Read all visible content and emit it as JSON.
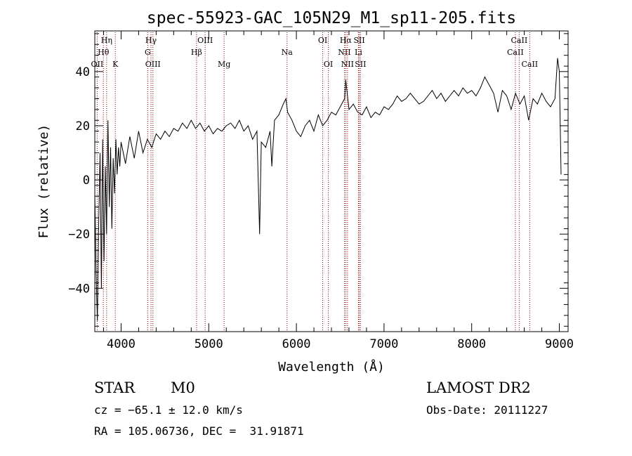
{
  "chart_data": {
    "type": "line",
    "title": "spec-55923-GAC_105N29_M1_sp11-205.fits",
    "xlabel": "Wavelength (Å)",
    "ylabel": "Flux (relative)",
    "xlim": [
      3700,
      9100
    ],
    "ylim": [
      -56,
      55
    ],
    "xticks": [
      4000,
      5000,
      6000,
      7000,
      8000,
      9000
    ],
    "yticks": [
      -40,
      -20,
      0,
      20,
      40
    ],
    "xtick_labels": [
      "4000",
      "5000",
      "6000",
      "7000",
      "8000",
      "9000"
    ],
    "ytick_labels": [
      "−40",
      "−20",
      "0",
      "20",
      "40"
    ],
    "grid": false,
    "line_color": "#000000",
    "marker_color": "#8b0000",
    "series": [
      {
        "values": [
          [
            3700,
            -5
          ],
          [
            3715,
            -35
          ],
          [
            3730,
            -52
          ],
          [
            3745,
            -15
          ],
          [
            3760,
            10
          ],
          [
            3775,
            -40
          ],
          [
            3790,
            15
          ],
          [
            3805,
            -30
          ],
          [
            3820,
            5
          ],
          [
            3835,
            -20
          ],
          [
            3850,
            22
          ],
          [
            3865,
            -10
          ],
          [
            3880,
            12
          ],
          [
            3895,
            -18
          ],
          [
            3910,
            8
          ],
          [
            3925,
            -5
          ],
          [
            3940,
            15
          ],
          [
            3955,
            2
          ],
          [
            3970,
            12
          ],
          [
            3985,
            5
          ],
          [
            4000,
            14
          ],
          [
            4050,
            6
          ],
          [
            4100,
            16
          ],
          [
            4150,
            8
          ],
          [
            4200,
            18
          ],
          [
            4250,
            10
          ],
          [
            4300,
            15
          ],
          [
            4350,
            12
          ],
          [
            4400,
            17
          ],
          [
            4450,
            15
          ],
          [
            4500,
            18
          ],
          [
            4550,
            16
          ],
          [
            4600,
            19
          ],
          [
            4650,
            18
          ],
          [
            4700,
            21
          ],
          [
            4750,
            19
          ],
          [
            4800,
            22
          ],
          [
            4850,
            19
          ],
          [
            4900,
            21
          ],
          [
            4950,
            18
          ],
          [
            5000,
            20
          ],
          [
            5050,
            17
          ],
          [
            5100,
            19
          ],
          [
            5150,
            18
          ],
          [
            5200,
            20
          ],
          [
            5250,
            21
          ],
          [
            5300,
            19
          ],
          [
            5350,
            22
          ],
          [
            5400,
            18
          ],
          [
            5450,
            20
          ],
          [
            5500,
            15
          ],
          [
            5550,
            18
          ],
          [
            5580,
            -20
          ],
          [
            5600,
            14
          ],
          [
            5650,
            12
          ],
          [
            5700,
            18
          ],
          [
            5720,
            5
          ],
          [
            5750,
            22
          ],
          [
            5800,
            24
          ],
          [
            5850,
            28
          ],
          [
            5880,
            30
          ],
          [
            5900,
            25
          ],
          [
            5950,
            22
          ],
          [
            6000,
            18
          ],
          [
            6050,
            16
          ],
          [
            6100,
            20
          ],
          [
            6150,
            22
          ],
          [
            6200,
            18
          ],
          [
            6250,
            24
          ],
          [
            6300,
            20
          ],
          [
            6350,
            22
          ],
          [
            6400,
            25
          ],
          [
            6450,
            24
          ],
          [
            6500,
            27
          ],
          [
            6550,
            30
          ],
          [
            6563,
            37
          ],
          [
            6600,
            26
          ],
          [
            6650,
            28
          ],
          [
            6700,
            25
          ],
          [
            6750,
            24
          ],
          [
            6800,
            27
          ],
          [
            6850,
            23
          ],
          [
            6900,
            25
          ],
          [
            6950,
            24
          ],
          [
            7000,
            27
          ],
          [
            7050,
            26
          ],
          [
            7100,
            28
          ],
          [
            7150,
            31
          ],
          [
            7200,
            29
          ],
          [
            7250,
            30
          ],
          [
            7300,
            32
          ],
          [
            7350,
            30
          ],
          [
            7400,
            28
          ],
          [
            7450,
            29
          ],
          [
            7500,
            31
          ],
          [
            7550,
            33
          ],
          [
            7600,
            30
          ],
          [
            7650,
            32
          ],
          [
            7700,
            29
          ],
          [
            7750,
            31
          ],
          [
            7800,
            33
          ],
          [
            7850,
            31
          ],
          [
            7900,
            34
          ],
          [
            7950,
            32
          ],
          [
            8000,
            33
          ],
          [
            8050,
            31
          ],
          [
            8100,
            34
          ],
          [
            8150,
            38
          ],
          [
            8200,
            35
          ],
          [
            8250,
            32
          ],
          [
            8300,
            25
          ],
          [
            8350,
            33
          ],
          [
            8400,
            31
          ],
          [
            8450,
            26
          ],
          [
            8500,
            32
          ],
          [
            8550,
            28
          ],
          [
            8600,
            31
          ],
          [
            8650,
            22
          ],
          [
            8700,
            30
          ],
          [
            8750,
            28
          ],
          [
            8800,
            32
          ],
          [
            8850,
            29
          ],
          [
            8900,
            27
          ],
          [
            8950,
            30
          ],
          [
            8980,
            45
          ],
          [
            9000,
            40
          ],
          [
            9020,
            2
          ]
        ]
      }
    ],
    "line_markers": [
      {
        "x": 3727,
        "label": "OII",
        "row": 3
      },
      {
        "x": 3798,
        "label": "Hθ",
        "row": 2
      },
      {
        "x": 3835,
        "label": "Hη",
        "row": 1
      },
      {
        "x": 3934,
        "label": "K",
        "row": 3
      },
      {
        "x": 4304,
        "label": "G",
        "row": 2
      },
      {
        "x": 4341,
        "label": "Hγ",
        "row": 1
      },
      {
        "x": 4363,
        "label": "OIII",
        "row": 3
      },
      {
        "x": 4861,
        "label": "Hβ",
        "row": 2
      },
      {
        "x": 4959,
        "label": "OIII",
        "row": 1
      },
      {
        "x": 5175,
        "label": "Mg",
        "row": 3
      },
      {
        "x": 5893,
        "label": "Na",
        "row": 2
      },
      {
        "x": 6300,
        "label": "OI",
        "row": 1
      },
      {
        "x": 6364,
        "label": "OI",
        "row": 3
      },
      {
        "x": 6548,
        "label": "NII",
        "row": 2
      },
      {
        "x": 6563,
        "label": "Hα",
        "row": 1
      },
      {
        "x": 6583,
        "label": "NII",
        "row": 3
      },
      {
        "x": 6708,
        "label": "Li",
        "row": 2
      },
      {
        "x": 6717,
        "label": "SII",
        "row": 1
      },
      {
        "x": 6731,
        "label": "SII",
        "row": 3
      },
      {
        "x": 8498,
        "label": "CaII",
        "row": 2
      },
      {
        "x": 8542,
        "label": "CaII",
        "row": 1
      },
      {
        "x": 8662,
        "label": "CaII",
        "row": 3
      }
    ]
  },
  "footer": {
    "object_class": "STAR",
    "subclass": "M0",
    "release": "LAMOST DR2",
    "redshift": "cz = −65.1 ± 12.0 km/s",
    "obs_date": "Obs-Date: 20111227",
    "coords": "RA = 105.06736, DEC =  31.91871"
  }
}
